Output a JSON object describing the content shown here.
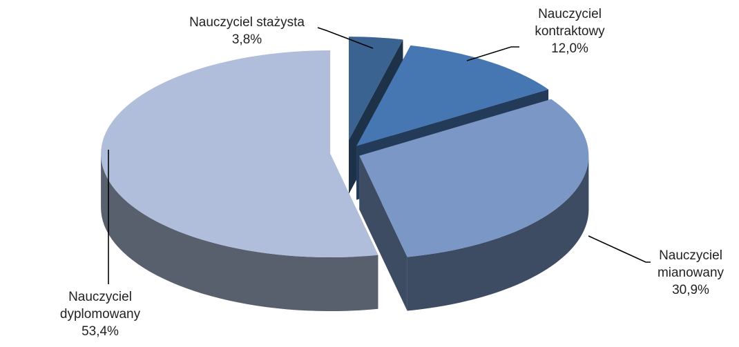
{
  "chart_data": {
    "type": "pie",
    "categories": [
      "Nauczyciel stażysta",
      "Nauczyciel kontraktowy",
      "Nauczyciel mianowany",
      "Nauczyciel dyplomowany"
    ],
    "values": [
      3.8,
      12.0,
      30.9,
      53.4
    ],
    "value_labels": [
      "3,8%",
      "12,0%",
      "30,9%",
      "53,4%"
    ],
    "colors": [
      "#3a6391",
      "#4677b3",
      "#7b97c6",
      "#b0bedb"
    ]
  }
}
